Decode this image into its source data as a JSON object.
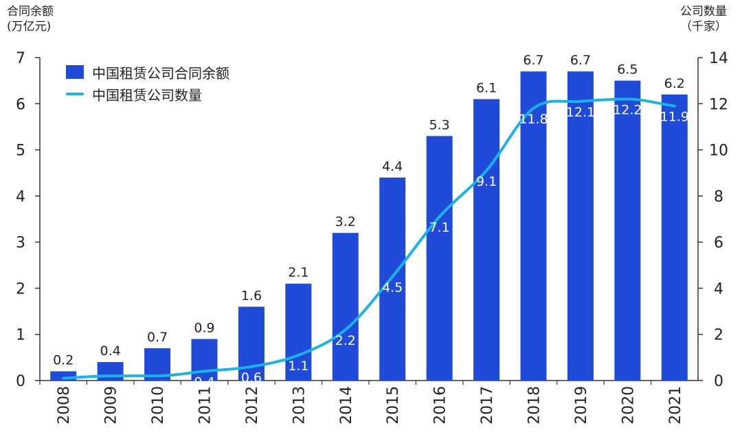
{
  "chart_data": {
    "type": "bar",
    "title": "",
    "categories": [
      "2008",
      "2009",
      "2010",
      "2011",
      "2012",
      "2013",
      "2014",
      "2015",
      "2016",
      "2017",
      "2018",
      "2019",
      "2020",
      "2021"
    ],
    "series": [
      {
        "name": "中国租赁公司合同余额",
        "type": "bar",
        "axis": "left",
        "color": "#1f4bd8",
        "values": [
          0.2,
          0.4,
          0.7,
          0.9,
          1.6,
          2.1,
          3.2,
          4.4,
          5.3,
          6.1,
          6.7,
          6.7,
          6.5,
          6.2
        ],
        "labels": [
          "0.2",
          "0.4",
          "0.7",
          "0.9",
          "1.6",
          "2.1",
          "3.2",
          "4.4",
          "5.3",
          "6.1",
          "6.7",
          "6.7",
          "6.5",
          "6.2"
        ]
      },
      {
        "name": "中国租赁公司数量",
        "type": "line",
        "axis": "right",
        "color": "#1ab3e8",
        "values": [
          0.1,
          0.2,
          0.2,
          0.4,
          0.6,
          1.1,
          2.2,
          4.5,
          7.1,
          9.1,
          11.8,
          12.1,
          12.2,
          11.9
        ],
        "labels": [
          "",
          "",
          "",
          "0.4",
          "0.6",
          "1.1",
          "2.2",
          "4.5",
          "7.1",
          "9.1",
          "11.8",
          "12.1",
          "12.2",
          "11.9"
        ]
      }
    ],
    "y_left": {
      "label_line1": "合同余额",
      "label_line2": "(万亿元)",
      "range": [
        0,
        7
      ],
      "ticks": [
        "0",
        "1",
        "2",
        "3",
        "4",
        "5",
        "6",
        "7"
      ]
    },
    "y_right": {
      "label_line1": "公司数量",
      "label_line2": "（千家）",
      "range": [
        0,
        14
      ],
      "ticks": [
        "0",
        "2",
        "4",
        "6",
        "8",
        "10",
        "12",
        "14"
      ]
    },
    "legend_position": "top-left",
    "grid": false
  }
}
